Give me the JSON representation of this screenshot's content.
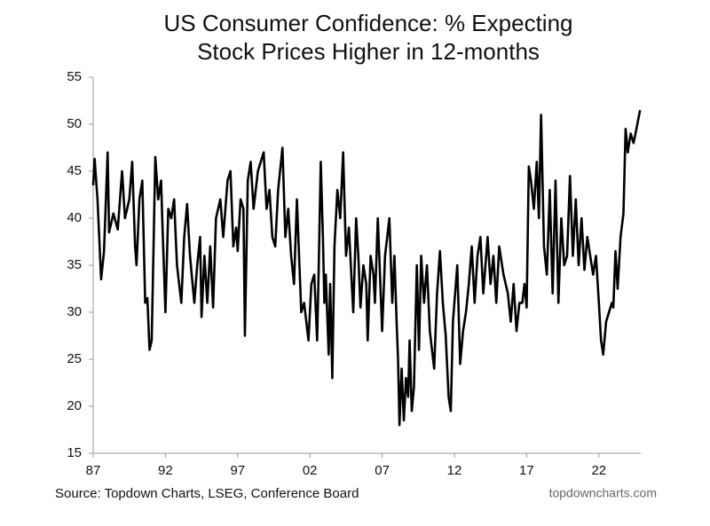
{
  "chart_data": {
    "type": "line",
    "title": "US Consumer Confidence: % Expecting Stock Prices Higher in 12-months",
    "source": "Source: Topdown Charts, LSEG, Conference Board",
    "watermark": "topdowncharts.com",
    "color": "#000000",
    "grid": false,
    "xlim": [
      1987,
      2024.9
    ],
    "xticks": [
      {
        "value": 1987,
        "label": "87"
      },
      {
        "value": 1992,
        "label": "92"
      },
      {
        "value": 1997,
        "label": "97"
      },
      {
        "value": 2002,
        "label": "02"
      },
      {
        "value": 2007,
        "label": "07"
      },
      {
        "value": 2012,
        "label": "12"
      },
      {
        "value": 2017,
        "label": "17"
      },
      {
        "value": 2022,
        "label": "22"
      }
    ],
    "ylim": [
      15,
      55
    ],
    "yticks": [
      15,
      20,
      25,
      30,
      35,
      40,
      45,
      50,
      55
    ],
    "x": [
      1987.0,
      1987.1,
      1987.3,
      1987.55,
      1987.75,
      1988.0,
      1988.1,
      1988.4,
      1988.7,
      1989.0,
      1989.2,
      1989.5,
      1989.7,
      1989.9,
      1990.0,
      1990.2,
      1990.4,
      1990.6,
      1990.75,
      1990.9,
      1991.05,
      1991.3,
      1991.5,
      1991.7,
      1991.8,
      1992.0,
      1992.2,
      1992.4,
      1992.6,
      1992.8,
      1993.1,
      1993.3,
      1993.5,
      1993.7,
      1994.0,
      1994.2,
      1994.4,
      1994.5,
      1994.7,
      1994.9,
      1995.1,
      1995.3,
      1995.5,
      1995.8,
      1996.0,
      1996.3,
      1996.5,
      1996.7,
      1996.9,
      1997.0,
      1997.2,
      1997.4,
      1997.5,
      1997.7,
      1997.9,
      1998.1,
      1998.4,
      1998.8,
      1999.0,
      1999.2,
      1999.4,
      1999.6,
      1999.8,
      2000.1,
      2000.3,
      2000.5,
      2000.7,
      2000.9,
      2001.1,
      2001.4,
      2001.6,
      2001.9,
      2002.1,
      2002.3,
      2002.5,
      2002.6,
      2002.75,
      2002.9,
      2003.0,
      2003.1,
      2003.3,
      2003.4,
      2003.55,
      2003.7,
      2003.9,
      2004.1,
      2004.3,
      2004.5,
      2004.7,
      2004.9,
      2005.0,
      2005.2,
      2005.35,
      2005.5,
      2005.7,
      2005.9,
      2006.0,
      2006.2,
      2006.4,
      2006.5,
      2006.7,
      2006.9,
      2007.0,
      2007.2,
      2007.35,
      2007.5,
      2007.7,
      2007.85,
      2008.0,
      2008.1,
      2008.2,
      2008.35,
      2008.5,
      2008.65,
      2008.8,
      2008.9,
      2009.05,
      2009.2,
      2009.4,
      2009.55,
      2009.7,
      2009.9,
      2010.1,
      2010.3,
      2010.6,
      2010.8,
      2011.0,
      2011.2,
      2011.4,
      2011.6,
      2011.75,
      2011.9,
      2012.2,
      2012.4,
      2012.6,
      2012.8,
      2013.0,
      2013.2,
      2013.4,
      2013.6,
      2013.8,
      2014.0,
      2014.3,
      2014.5,
      2014.7,
      2014.9,
      2015.1,
      2015.4,
      2015.7,
      2015.9,
      2016.1,
      2016.3,
      2016.5,
      2016.7,
      2016.85,
      2017.0,
      2017.15,
      2017.3,
      2017.5,
      2017.7,
      2017.85,
      2018.0,
      2018.2,
      2018.4,
      2018.6,
      2018.8,
      2019.0,
      2019.2,
      2019.4,
      2019.6,
      2019.8,
      2020.0,
      2020.2,
      2020.4,
      2020.6,
      2020.8,
      2021.0,
      2021.2,
      2021.4,
      2021.6,
      2021.8,
      2022.0,
      2022.15,
      2022.3,
      2022.5,
      2022.7,
      2022.9,
      2023.0,
      2023.15,
      2023.3,
      2023.5,
      2023.7,
      2023.85,
      2024.0,
      2024.2,
      2024.4,
      2024.6,
      2024.85
    ],
    "values": [
      43.5,
      46.3,
      42,
      33.5,
      36.5,
      47,
      38.5,
      40.5,
      38.8,
      45,
      40,
      42,
      46,
      37,
      35,
      42,
      44,
      31,
      31.5,
      26,
      27,
      46.5,
      42,
      44,
      39,
      30,
      41,
      40,
      42,
      35,
      31,
      38,
      41.5,
      36,
      31,
      35,
      38,
      29.5,
      36,
      31,
      37,
      30.5,
      40,
      42,
      38,
      44,
      45,
      37,
      39,
      36.5,
      42,
      41,
      27.5,
      44,
      46,
      41,
      45,
      47,
      41,
      43,
      38,
      37,
      43,
      47.5,
      38,
      41,
      36,
      33,
      42,
      30,
      31,
      27,
      33,
      34,
      27,
      34,
      46,
      38,
      31,
      34,
      25.5,
      33,
      23,
      37,
      43,
      40,
      47,
      36,
      39,
      33,
      30,
      40,
      36,
      30.5,
      35,
      33,
      27,
      36,
      34,
      31,
      40,
      32,
      28,
      36,
      38,
      40,
      31,
      36,
      29,
      25,
      18,
      24,
      18.5,
      23,
      21,
      27,
      19.5,
      22,
      35,
      26,
      36,
      31,
      35,
      28,
      24,
      32,
      36.5,
      31,
      27.5,
      21,
      19.5,
      29,
      35,
      24.5,
      28,
      30,
      33,
      37,
      31,
      36,
      38,
      32,
      38,
      33,
      36,
      31,
      37,
      34,
      32,
      29,
      33,
      28,
      31,
      31,
      33,
      30.5,
      45.5,
      44,
      41,
      46,
      40,
      51,
      37,
      34,
      43,
      32,
      44,
      31,
      40,
      35,
      36,
      44.5,
      36,
      42,
      35,
      40,
      34.5,
      38,
      36,
      34,
      36,
      31,
      27,
      25.5,
      29,
      30,
      31,
      30.5,
      36.5,
      32.5,
      38,
      40.5,
      49.5,
      47,
      49,
      48,
      49.5,
      51.5
    ]
  }
}
